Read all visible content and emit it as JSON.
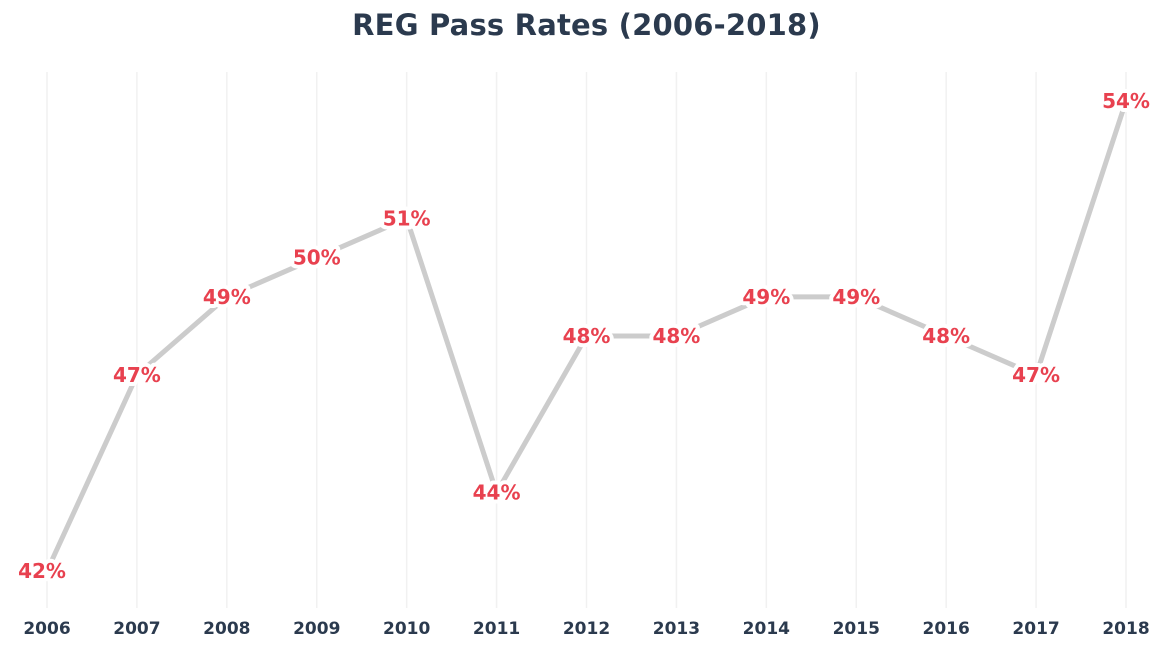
{
  "chart_data": {
    "type": "line",
    "title": "REG Pass Rates (2006-2018)",
    "xlabel": "",
    "ylabel": "",
    "categories": [
      "2006",
      "2007",
      "2008",
      "2009",
      "2010",
      "2011",
      "2012",
      "2013",
      "2014",
      "2015",
      "2016",
      "2017",
      "2018"
    ],
    "values": [
      42,
      47,
      49,
      50,
      51,
      44,
      48,
      48,
      49,
      49,
      48,
      47,
      54
    ],
    "value_labels": [
      "42%",
      "47%",
      "49%",
      "50%",
      "51%",
      "44%",
      "48%",
      "48%",
      "49%",
      "49%",
      "48%",
      "47%",
      "54%"
    ],
    "ylim": [
      42,
      54
    ],
    "grid": "vertical",
    "legend": "none",
    "colors": {
      "title": "#2b3a4e",
      "tick_labels": "#2b3a4e",
      "line": "#cccccc",
      "data_labels": "#e8414f",
      "gridlines": "#f1f1f1"
    }
  }
}
